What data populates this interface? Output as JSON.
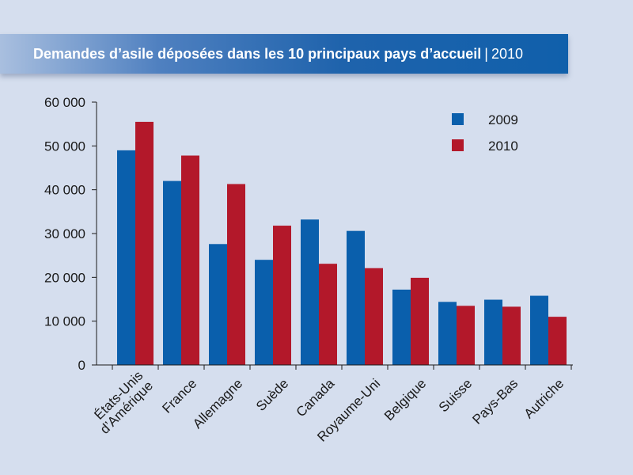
{
  "header": {
    "title": "Demandes d’asile déposées dans les 10 principaux pays d’accueil",
    "separator": "|",
    "year": "2010"
  },
  "chart_data": {
    "type": "bar",
    "title": "Demandes d’asile déposées dans les 10 principaux pays d’accueil | 2010",
    "categories": [
      [
        "États-Unis",
        "d’Amérique"
      ],
      [
        "France"
      ],
      [
        "Allemagne"
      ],
      [
        "Suède"
      ],
      [
        "Canada"
      ],
      [
        "Royaume-Uni"
      ],
      [
        "Belgique"
      ],
      [
        "Suisse"
      ],
      [
        "Pays-Bas"
      ],
      [
        "Autriche"
      ]
    ],
    "series": [
      {
        "name": "2009",
        "color": "#0a5fac",
        "values": [
          49000,
          42000,
          27600,
          24000,
          33200,
          30600,
          17200,
          14400,
          14900,
          15800
        ]
      },
      {
        "name": "2010",
        "color": "#b3182a",
        "values": [
          55500,
          47800,
          41300,
          31800,
          23100,
          22100,
          19900,
          13500,
          13300,
          11000
        ]
      }
    ],
    "yticks": [
      "0",
      "10 000",
      "20 000",
      "30 000",
      "40 000",
      "50 000",
      "60 000"
    ],
    "ylim": [
      0,
      60000
    ],
    "xlabel": "",
    "ylabel": "",
    "legend_position": "top-right",
    "grid": false
  }
}
